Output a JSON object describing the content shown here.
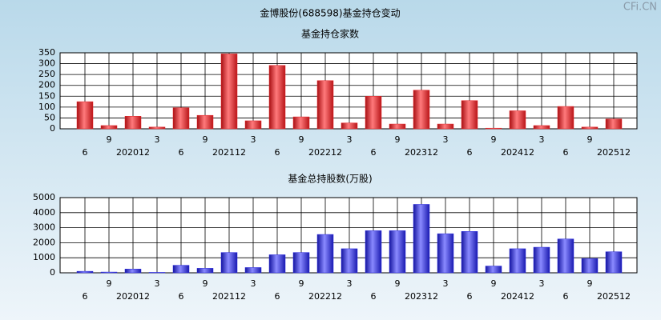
{
  "title": "金博股份(688598)基金持仓变动",
  "watermark": "CFi.CN",
  "chart_data": [
    {
      "type": "bar",
      "title": "基金持仓家数",
      "color": "#e8262a",
      "categories": [
        "6",
        "9",
        "202012",
        "3",
        "6",
        "9",
        "202112",
        "3",
        "6",
        "9",
        "202212",
        "3",
        "6",
        "9",
        "202312",
        "3",
        "6",
        "9",
        "202412",
        "3",
        "6",
        "9",
        "202512"
      ],
      "values": [
        125,
        15,
        58,
        8,
        97,
        62,
        345,
        37,
        292,
        55,
        222,
        27,
        150,
        22,
        178,
        22,
        130,
        3,
        83,
        15,
        103,
        8,
        45
      ],
      "ylim": [
        0,
        350
      ],
      "yticks": [
        0,
        50,
        100,
        150,
        200,
        250,
        300,
        350
      ],
      "grid": true
    },
    {
      "type": "bar",
      "title": "基金总持股数(万股)",
      "color": "#2a2ae0",
      "categories": [
        "6",
        "9",
        "202012",
        "3",
        "6",
        "9",
        "202112",
        "3",
        "6",
        "9",
        "202212",
        "3",
        "6",
        "9",
        "202312",
        "3",
        "6",
        "9",
        "202412",
        "3",
        "6",
        "9",
        "202512"
      ],
      "values": [
        100,
        50,
        250,
        30,
        500,
        300,
        1350,
        350,
        1200,
        1350,
        2550,
        1600,
        2800,
        2800,
        4550,
        2600,
        2750,
        450,
        1600,
        1700,
        2250,
        950,
        1400
      ],
      "ylim": [
        0,
        5000
      ],
      "yticks": [
        0,
        1000,
        2000,
        3000,
        4000,
        5000
      ],
      "grid": true
    }
  ]
}
